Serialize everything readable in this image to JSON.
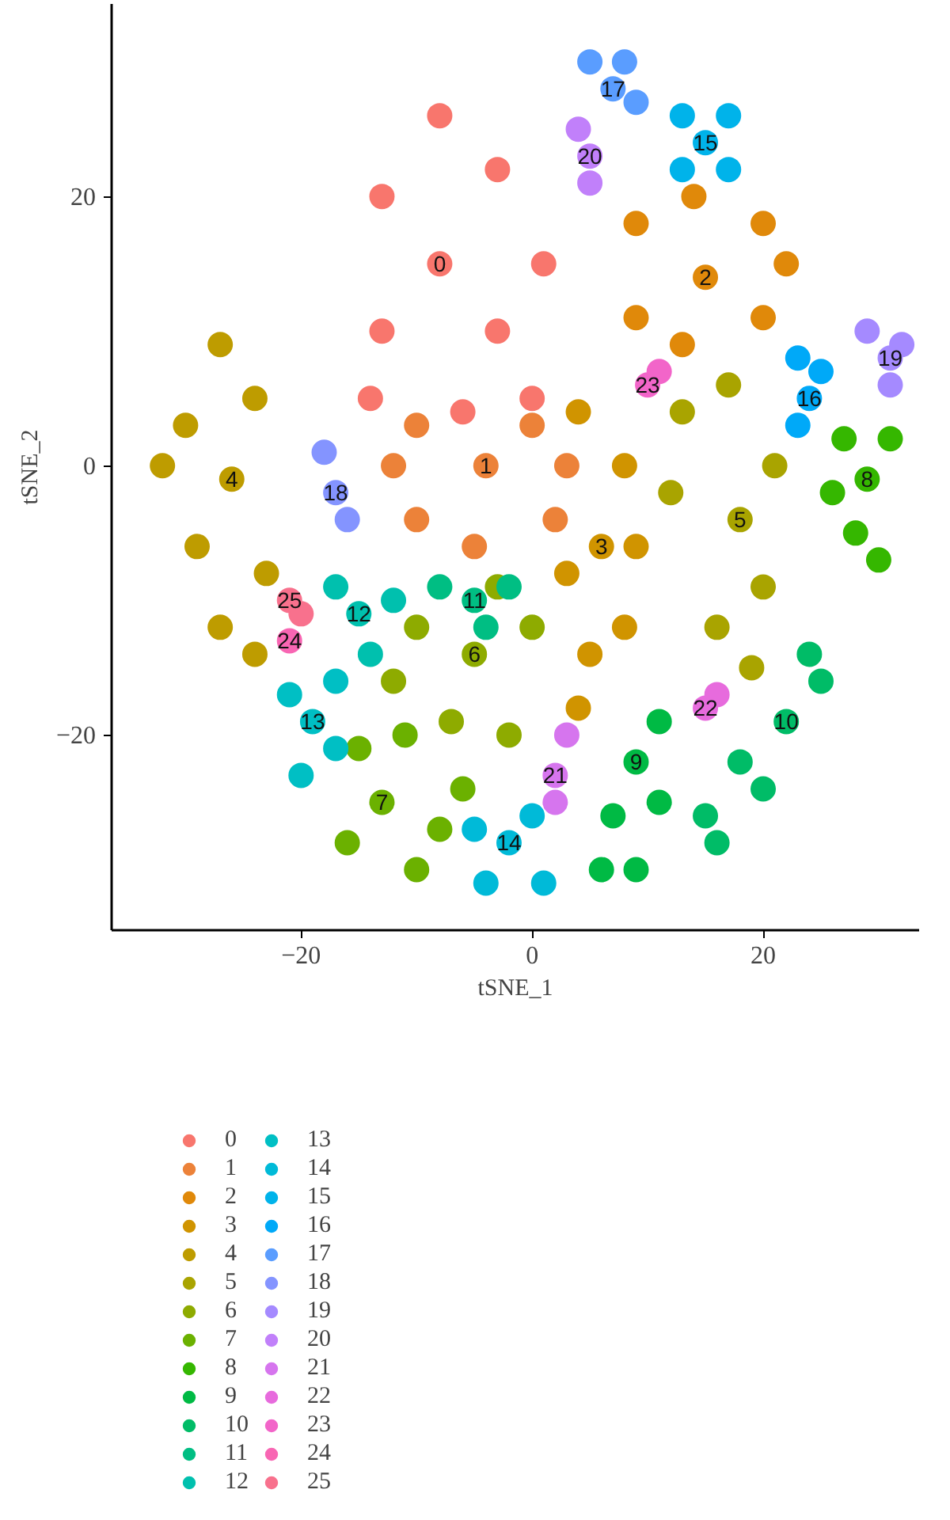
{
  "chart_data": {
    "type": "scatter",
    "xlabel": "tSNE_1",
    "ylabel": "tSNE_2",
    "xlim": [
      -36.4,
      33.5
    ],
    "ylim": [
      -34.5,
      34.3
    ],
    "xticks": [
      {
        "value": -20,
        "label": "−20"
      },
      0,
      20
    ],
    "yticks": [
      {
        "value": -20,
        "label": "−20"
      },
      0,
      20
    ],
    "grid": false,
    "legend": "bottom",
    "marker": "circle",
    "series": [
      {
        "name": "0",
        "color": "#f8766d",
        "x": [
          -8,
          -13,
          -13,
          -3,
          -3,
          -8,
          -14,
          0,
          1,
          -6
        ],
        "values": [
          15,
          20,
          10,
          22,
          10,
          26,
          5,
          5,
          15,
          4
        ]
      },
      {
        "name": "1",
        "color": "#ec8239",
        "x": [
          -4,
          -10,
          -10,
          0,
          2,
          -5,
          -12,
          3
        ],
        "values": [
          0,
          3,
          -4,
          3,
          -4,
          -6,
          0,
          0
        ]
      },
      {
        "name": "2",
        "color": "#e0890a",
        "x": [
          15,
          9,
          9,
          20,
          20,
          14,
          13,
          22
        ],
        "values": [
          14,
          18,
          11,
          18,
          11,
          20,
          9,
          15
        ]
      },
      {
        "name": "3",
        "color": "#d09400",
        "x": [
          6,
          4,
          8,
          5,
          8,
          4,
          3,
          9
        ],
        "values": [
          -6,
          4,
          0,
          -14,
          -12,
          -18,
          -8,
          -6
        ]
      },
      {
        "name": "4",
        "color": "#be9c00",
        "x": [
          -26,
          -27,
          -24,
          -32,
          -30,
          -23,
          -27,
          -24,
          -29
        ],
        "values": [
          -1,
          9,
          5,
          0,
          3,
          -8,
          -12,
          -14,
          -6
        ]
      },
      {
        "name": "5",
        "color": "#a9a400",
        "x": [
          18,
          13,
          17,
          21,
          20,
          16,
          12,
          19
        ],
        "values": [
          -4,
          4,
          6,
          0,
          -9,
          -12,
          -2,
          -15
        ]
      },
      {
        "name": "6",
        "color": "#8eab00",
        "x": [
          -5,
          -10,
          -12,
          -7,
          -2,
          0,
          -3
        ],
        "values": [
          -14,
          -12,
          -16,
          -19,
          -20,
          -12,
          -9
        ]
      },
      {
        "name": "7",
        "color": "#6bb100",
        "x": [
          -13,
          -16,
          -11,
          -8,
          -15,
          -10,
          -6
        ],
        "values": [
          -25,
          -28,
          -20,
          -27,
          -21,
          -30,
          -24
        ]
      },
      {
        "name": "8",
        "color": "#35b700",
        "x": [
          29,
          27,
          31,
          28,
          30,
          26
        ],
        "values": [
          -1,
          2,
          2,
          -5,
          -7,
          -2
        ]
      },
      {
        "name": "9",
        "color": "#00ba44",
        "x": [
          9,
          11,
          7,
          11,
          6,
          9
        ],
        "values": [
          -22,
          -19,
          -26,
          -25,
          -30,
          -30
        ]
      },
      {
        "name": "10",
        "color": "#00bc67",
        "x": [
          22,
          24,
          18,
          15,
          20,
          25,
          16
        ],
        "values": [
          -19,
          -14,
          -22,
          -26,
          -24,
          -16,
          -28
        ]
      },
      {
        "name": "11",
        "color": "#00be83",
        "x": [
          -5,
          -8,
          -2,
          -4
        ],
        "values": [
          -10,
          -9,
          -9,
          -12
        ]
      },
      {
        "name": "12",
        "color": "#00c0ae",
        "x": [
          -15,
          -17,
          -12,
          -14
        ],
        "values": [
          -11,
          -9,
          -10,
          -14
        ]
      },
      {
        "name": "13",
        "color": "#00bfc4",
        "x": [
          -19,
          -21,
          -17,
          -20,
          -17
        ],
        "values": [
          -19,
          -17,
          -16,
          -23,
          -21
        ]
      },
      {
        "name": "14",
        "color": "#00bad8",
        "x": [
          -2,
          -4,
          0,
          1,
          -5
        ],
        "values": [
          -28,
          -31,
          -26,
          -31,
          -27
        ]
      },
      {
        "name": "15",
        "color": "#00b3ea",
        "x": [
          15,
          13,
          17,
          13,
          17
        ],
        "values": [
          24,
          26,
          26,
          22,
          22
        ]
      },
      {
        "name": "16",
        "color": "#00a9f8",
        "x": [
          24,
          23,
          25,
          23
        ],
        "values": [
          5,
          8,
          7,
          3
        ]
      },
      {
        "name": "17",
        "color": "#5a9dff",
        "x": [
          7,
          5,
          9,
          8
        ],
        "values": [
          28,
          30,
          27,
          30
        ]
      },
      {
        "name": "18",
        "color": "#8494ff",
        "x": [
          -17,
          -18,
          -16
        ],
        "values": [
          -2,
          1,
          -4
        ]
      },
      {
        "name": "19",
        "color": "#a58aff",
        "x": [
          31,
          29,
          32,
          31
        ],
        "values": [
          8,
          10,
          9,
          6
        ]
      },
      {
        "name": "20",
        "color": "#c180fa",
        "x": [
          5,
          4,
          5
        ],
        "values": [
          23,
          25,
          21
        ]
      },
      {
        "name": "21",
        "color": "#d675ee",
        "x": [
          2,
          3,
          2
        ],
        "values": [
          -23,
          -20,
          -25
        ]
      },
      {
        "name": "22",
        "color": "#e76bdd",
        "x": [
          15,
          16
        ],
        "values": [
          -18,
          -17
        ]
      },
      {
        "name": "23",
        "color": "#f265c9",
        "x": [
          10,
          11
        ],
        "values": [
          6,
          7
        ]
      },
      {
        "name": "24",
        "color": "#f866b3",
        "x": [
          -21
        ],
        "values": [
          -13
        ]
      },
      {
        "name": "25",
        "color": "#f8718d",
        "x": [
          -21,
          -20
        ],
        "values": [
          -10,
          -11
        ]
      }
    ]
  }
}
